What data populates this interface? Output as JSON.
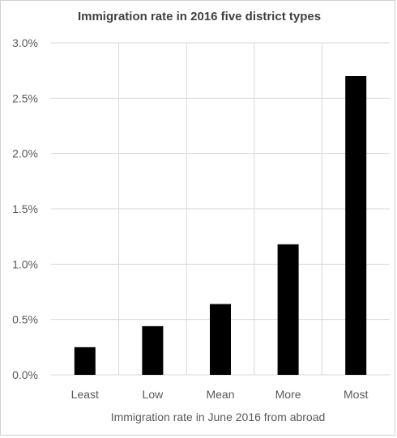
{
  "chart_data": {
    "type": "bar",
    "title": "Immigration rate in 2016 five district types",
    "xlabel": "Immigration rate in June 2016 from abroad",
    "ylabel": "",
    "categories": [
      "Least",
      "Low",
      "Mean",
      "More",
      "Most"
    ],
    "values": [
      0.25,
      0.44,
      0.64,
      1.18,
      2.7
    ],
    "value_unit": "percent",
    "ylim": [
      0,
      3.0
    ],
    "yticks": [
      "0.0%",
      "0.5%",
      "1.0%",
      "1.5%",
      "2.0%",
      "2.5%",
      "3.0%"
    ],
    "grid": true,
    "legend": "none",
    "bar_color": "#000000",
    "grid_color": "#d9d9d9"
  }
}
